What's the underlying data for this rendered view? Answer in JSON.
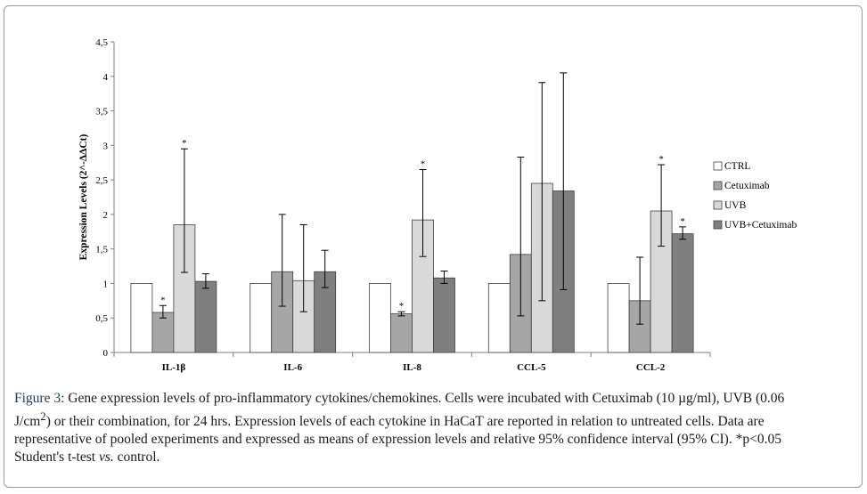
{
  "chart_data": {
    "type": "bar",
    "ylabel": "Expression Levels (2^-ΔΔCt)",
    "ylim": [
      0,
      4.5
    ],
    "yticks": [
      "0",
      "0,5",
      "1",
      "1,5",
      "2",
      "2,5",
      "3",
      "3,5",
      "4",
      "4,5"
    ],
    "categories": [
      "IL-1β",
      "IL-6",
      "IL-8",
      "CCL-5",
      "CCL-2"
    ],
    "legend_position": "right",
    "series": [
      {
        "name": "CTRL",
        "color": "#ffffff",
        "values": [
          1,
          1,
          1,
          1,
          1
        ],
        "err_low": [
          null,
          null,
          null,
          null,
          null
        ],
        "err_high": [
          null,
          null,
          null,
          null,
          null
        ],
        "sig": [
          false,
          false,
          false,
          false,
          false
        ]
      },
      {
        "name": "Cetuximab",
        "color": "#a6a6a6",
        "values": [
          0.58,
          1.17,
          0.56,
          1.42,
          0.75
        ],
        "err_low": [
          0.5,
          0.67,
          0.53,
          0.53,
          0.41
        ],
        "err_high": [
          0.68,
          2.0,
          0.59,
          2.83,
          1.38
        ],
        "sig": [
          true,
          false,
          true,
          false,
          false
        ]
      },
      {
        "name": "UVB",
        "color": "#d9d9d9",
        "values": [
          1.85,
          1.04,
          1.92,
          2.45,
          2.05
        ],
        "err_low": [
          1.16,
          0.59,
          1.39,
          0.75,
          1.54
        ],
        "err_high": [
          2.95,
          1.85,
          2.65,
          3.91,
          2.72
        ],
        "sig": [
          true,
          false,
          true,
          false,
          true
        ]
      },
      {
        "name": "UVB+Cetuximab",
        "color": "#7f7f7f",
        "values": [
          1.03,
          1.17,
          1.08,
          2.34,
          1.72
        ],
        "err_low": [
          0.93,
          0.94,
          1.0,
          0.91,
          1.64
        ],
        "err_high": [
          1.14,
          1.48,
          1.18,
          4.05,
          1.82
        ],
        "sig": [
          false,
          false,
          false,
          false,
          true
        ]
      }
    ],
    "significance_marker": "*"
  },
  "caption": {
    "label": "Figure 3:",
    "line1": "Gene expression levels of pro-inflammatory cytokines/chemokines. Cells were incubated with Cetuximab (10 µg/ml), UVB (0.06",
    "line2a": "J/cm",
    "line2sup": "2",
    "line2b": ") or their combination, for 24 hrs. Expression levels of each cytokine in HaCaT are reported in relation to untreated cells. Data are",
    "line3": "representative of pooled experiments and expressed as means of expression levels and relative 95% confidence interval (95% CI). *p<0.05",
    "line4a": "Student's t-test ",
    "line4em": "vs.",
    "line4b": " control."
  }
}
